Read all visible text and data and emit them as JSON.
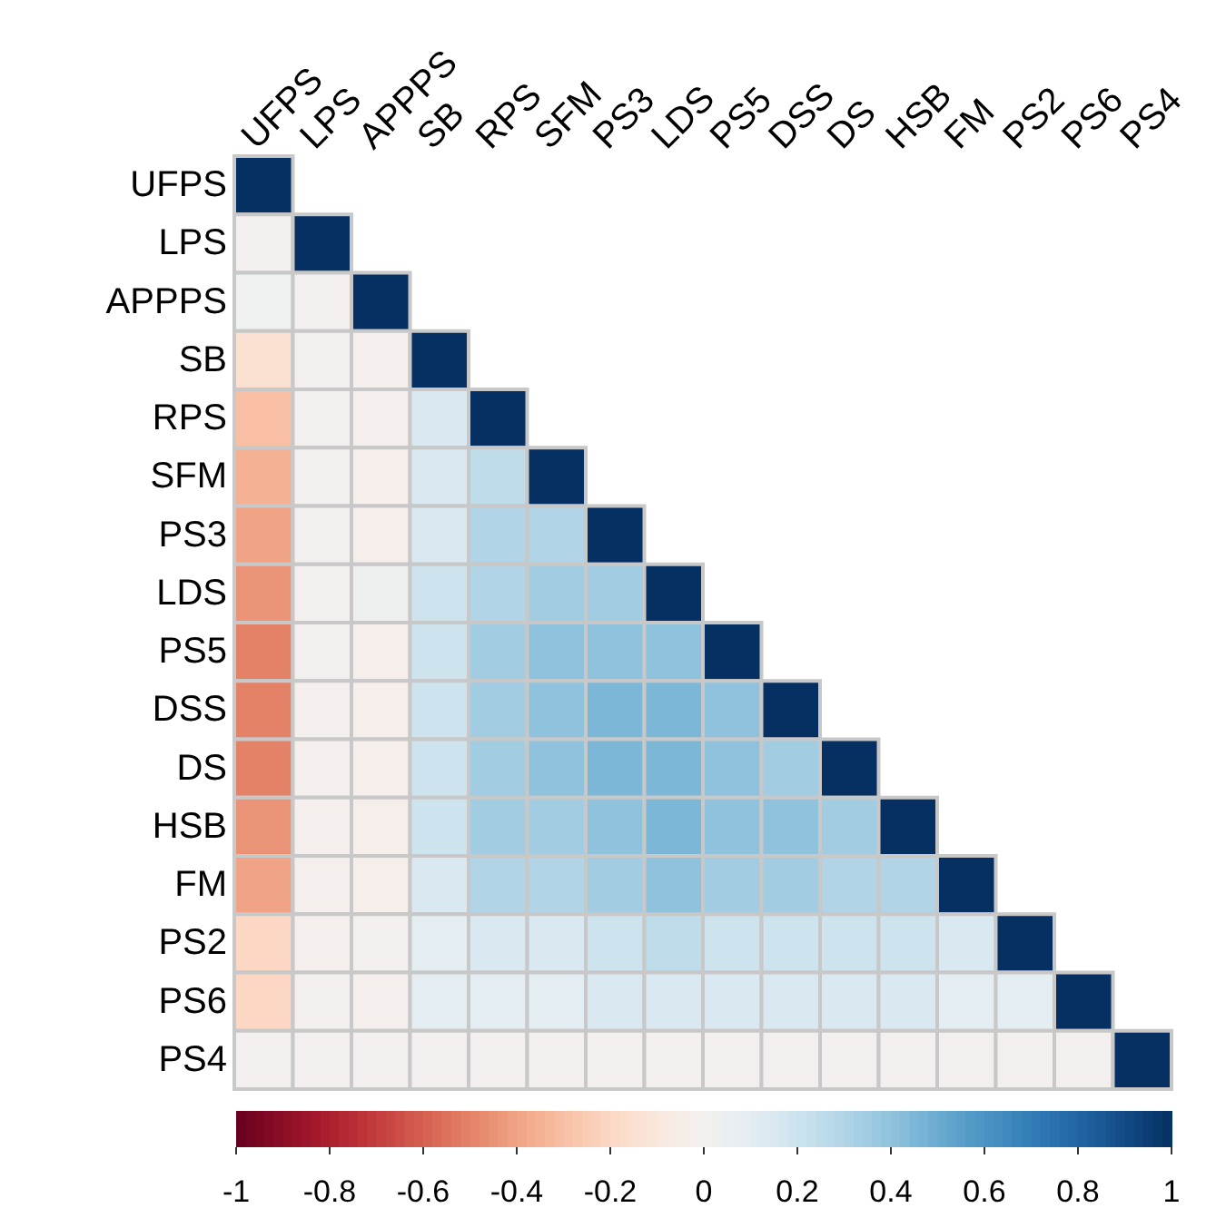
{
  "chart_data": {
    "type": "heatmap",
    "categories": [
      "UFPS",
      "LPS",
      "APPPS",
      "SB",
      "RPS",
      "SFM",
      "PS3",
      "LDS",
      "PS5",
      "DSS",
      "DS",
      "HSB",
      "FM",
      "PS2",
      "PS6",
      "PS4"
    ],
    "y_categories": [
      "UFPS",
      "LPS",
      "APPPS",
      "SB",
      "RPS",
      "SFM",
      "PS3",
      "LDS",
      "PS5",
      "DSS",
      "DS",
      "HSB",
      "FM",
      "PS2",
      "PS6",
      "PS4"
    ],
    "cells": [
      [
        1,
        null,
        null,
        null,
        null,
        null,
        null,
        null,
        null,
        null,
        null,
        null,
        null,
        null,
        null,
        null
      ],
      [
        0,
        1,
        null,
        null,
        null,
        null,
        null,
        null,
        null,
        null,
        null,
        null,
        null,
        null,
        null,
        null
      ],
      [
        0.02,
        0,
        1,
        null,
        null,
        null,
        null,
        null,
        null,
        null,
        null,
        null,
        null,
        null,
        null,
        null
      ],
      [
        -0.15,
        0,
        -0.02,
        1,
        null,
        null,
        null,
        null,
        null,
        null,
        null,
        null,
        null,
        null,
        null,
        null
      ],
      [
        -0.3,
        0,
        -0.02,
        0.15,
        1,
        null,
        null,
        null,
        null,
        null,
        null,
        null,
        null,
        null,
        null,
        null
      ],
      [
        -0.35,
        0,
        -0.03,
        0.15,
        0.25,
        1,
        null,
        null,
        null,
        null,
        null,
        null,
        null,
        null,
        null,
        null
      ],
      [
        -0.4,
        0,
        -0.03,
        0.15,
        0.3,
        0.3,
        1,
        null,
        null,
        null,
        null,
        null,
        null,
        null,
        null,
        null
      ],
      [
        -0.45,
        0,
        0.03,
        0.2,
        0.3,
        0.35,
        0.35,
        1,
        null,
        null,
        null,
        null,
        null,
        null,
        null,
        null
      ],
      [
        -0.5,
        0,
        -0.03,
        0.2,
        0.35,
        0.4,
        0.4,
        0.4,
        1,
        null,
        null,
        null,
        null,
        null,
        null,
        null
      ],
      [
        -0.5,
        -0.02,
        -0.03,
        0.2,
        0.35,
        0.4,
        0.45,
        0.45,
        0.4,
        1,
        null,
        null,
        null,
        null,
        null,
        null
      ],
      [
        -0.5,
        -0.02,
        -0.03,
        0.2,
        0.35,
        0.4,
        0.45,
        0.45,
        0.4,
        0.35,
        1,
        null,
        null,
        null,
        null,
        null
      ],
      [
        -0.45,
        -0.02,
        -0.03,
        0.2,
        0.35,
        0.35,
        0.4,
        0.45,
        0.4,
        0.4,
        0.35,
        1,
        null,
        null,
        null,
        null
      ],
      [
        -0.4,
        -0.02,
        -0.03,
        0.15,
        0.3,
        0.3,
        0.35,
        0.4,
        0.35,
        0.35,
        0.3,
        0.3,
        1,
        null,
        null,
        null
      ],
      [
        -0.2,
        -0.02,
        0,
        0.1,
        0.15,
        0.15,
        0.2,
        0.25,
        0.2,
        0.2,
        0.2,
        0.2,
        0.15,
        1,
        null,
        null
      ],
      [
        -0.2,
        0,
        -0.02,
        0.1,
        0.1,
        0.1,
        0.15,
        0.15,
        0.15,
        0.15,
        0.15,
        0.15,
        0.1,
        0.1,
        1,
        null
      ],
      [
        0,
        0,
        0,
        0,
        0,
        0,
        0,
        0,
        0,
        0,
        0,
        0,
        0,
        0,
        0,
        1
      ]
    ],
    "clim": [
      -1,
      1
    ],
    "cticks": [
      -1,
      -0.8,
      -0.6,
      -0.4,
      -0.2,
      0,
      0.2,
      0.4,
      0.6,
      0.8,
      1
    ]
  }
}
